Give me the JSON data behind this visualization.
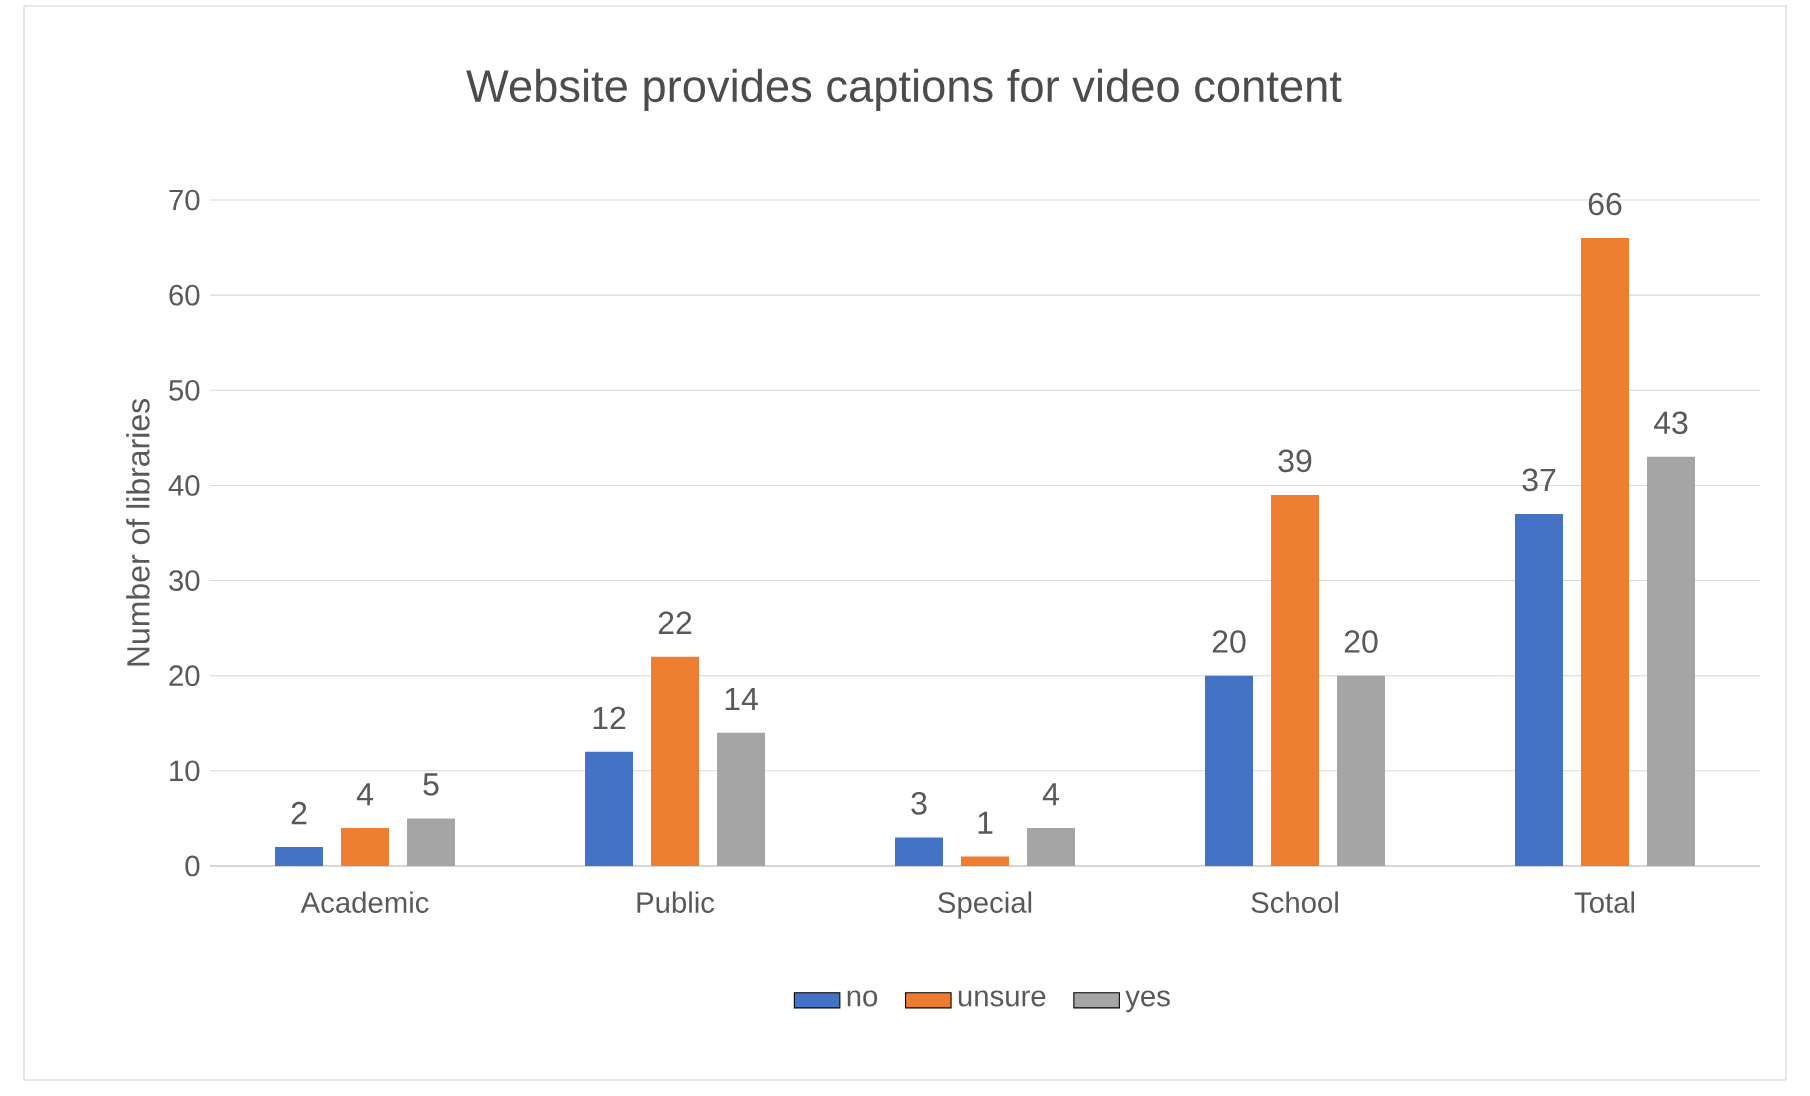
{
  "chart_data": {
    "type": "bar",
    "title": "Website provides captions for video content",
    "ylabel": "Number of libraries",
    "categories": [
      "Academic",
      "Public",
      "Special",
      "School",
      "Total"
    ],
    "series": [
      {
        "name": "no",
        "color": "#4472c4",
        "values": [
          2,
          12,
          3,
          20,
          37
        ]
      },
      {
        "name": "unsure",
        "color": "#ed7d31",
        "values": [
          4,
          22,
          1,
          39,
          66
        ]
      },
      {
        "name": "yes",
        "color": "#a5a5a5",
        "values": [
          5,
          14,
          4,
          20,
          43
        ]
      }
    ],
    "ylim": [
      0,
      70
    ],
    "yticks": [
      0,
      10,
      20,
      30,
      40,
      50,
      60,
      70
    ],
    "grid": "y",
    "legend": "bottom",
    "data_labels": true
  }
}
